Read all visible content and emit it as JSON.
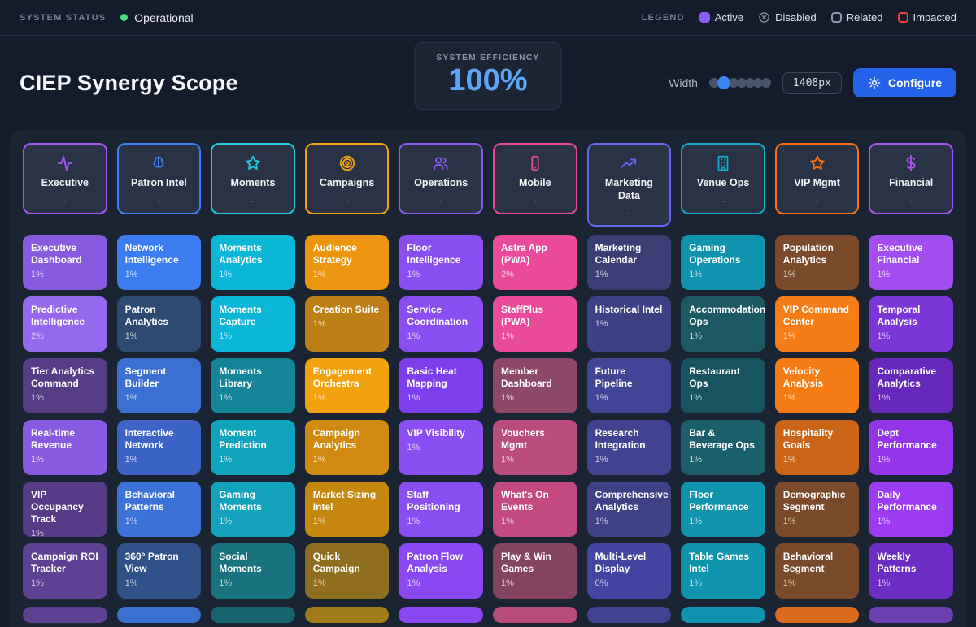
{
  "status_bar": {
    "label": "SYSTEM STATUS",
    "status": "Operational",
    "status_color": "#4ade80",
    "legend_label": "LEGEND",
    "legend": [
      {
        "label": "Active",
        "type": "active",
        "color": "#8b5cf6"
      },
      {
        "label": "Disabled",
        "type": "disabled",
        "color": "#8e98a8"
      },
      {
        "label": "Related",
        "type": "related",
        "color": "#8e98a8"
      },
      {
        "label": "Impacted",
        "type": "impacted",
        "color": "#ef4444"
      }
    ]
  },
  "header": {
    "title": "CIEP Synergy Scope",
    "efficiency_label": "SYSTEM EFFICIENCY",
    "efficiency_value": "100%",
    "efficiency_color": "#5fa5f6",
    "width_label": "Width",
    "width_value": "1408px",
    "slider": {
      "dots": 7,
      "active_index": 1,
      "active_color": "#3b82f6"
    },
    "configure_label": "Configure",
    "configure_color": "#2563eb"
  },
  "categories": [
    {
      "label": "Executive",
      "sub": "-",
      "icon": "activity-icon",
      "color": "#a855f7"
    },
    {
      "label": "Patron Intel",
      "sub": "-",
      "icon": "brain-icon",
      "color": "#3b82f6"
    },
    {
      "label": "Moments",
      "sub": "-",
      "icon": "star-icon",
      "color": "#22ccdd"
    },
    {
      "label": "Campaigns",
      "sub": "-",
      "icon": "target-icon",
      "color": "#f5a315"
    },
    {
      "label": "Operations",
      "sub": "-",
      "icon": "users-icon",
      "color": "#8b5cf6"
    },
    {
      "label": "Mobile",
      "sub": "-",
      "icon": "smartphone-icon",
      "color": "#ec4899"
    },
    {
      "label": "Marketing Data",
      "sub": "-",
      "icon": "trending-up-icon",
      "color": "#6466f0"
    },
    {
      "label": "Venue Ops",
      "sub": "-",
      "icon": "building-icon",
      "color": "#14a9c4"
    },
    {
      "label": "VIP Mgmt",
      "sub": "-",
      "icon": "star-icon",
      "color": "#f97316"
    },
    {
      "label": "Financial",
      "sub": "-",
      "icon": "dollar-icon",
      "color": "#a855f7"
    }
  ],
  "tiles": [
    {
      "label": "Executive Dashboard",
      "value": "1%",
      "color": "#875ae0"
    },
    {
      "label": "Network Intelligence",
      "value": "1%",
      "color": "#3b7cf0"
    },
    {
      "label": "Moments Analytics",
      "value": "1%",
      "color": "#0cb6d6"
    },
    {
      "label": "Audience Strategy",
      "value": "1%",
      "color": "#ec960f"
    },
    {
      "label": "Floor Intelligence",
      "value": "1%",
      "color": "#8a4df2"
    },
    {
      "label": "Astra App (PWA)",
      "value": "2%",
      "color": "#ea4a9a"
    },
    {
      "label": "Marketing Calendar",
      "value": "1%",
      "color": "#3b3d75"
    },
    {
      "label": "Gaming Operations",
      "value": "1%",
      "color": "#1192ae"
    },
    {
      "label": "Population Analytics",
      "value": "1%",
      "color": "#7b4a2b"
    },
    {
      "label": "Executive Financial",
      "value": "1%",
      "color": "#a34df0"
    },
    {
      "label": "Predictive Intelligence",
      "value": "2%",
      "color": "#9569ee"
    },
    {
      "label": "Patron Analytics",
      "value": "1%",
      "color": "#2d4a73"
    },
    {
      "label": "Moments Capture",
      "value": "1%",
      "color": "#0cb6d6"
    },
    {
      "label": "Creation Suite",
      "value": "1%",
      "color": "#bd7f16"
    },
    {
      "label": "Service Coordination",
      "value": "1%",
      "color": "#8a4df2"
    },
    {
      "label": "StaffPlus (PWA)",
      "value": "1%",
      "color": "#ea4a9a"
    },
    {
      "label": "Historical Intel",
      "value": "1%",
      "color": "#3e4084"
    },
    {
      "label": "Accommodation Ops",
      "value": "1%",
      "color": "#1c5964"
    },
    {
      "label": "VIP Command Center",
      "value": "1%",
      "color": "#f67d15"
    },
    {
      "label": "Temporal Analysis",
      "value": "1%",
      "color": "#7d36d8"
    },
    {
      "label": "Tier Analytics Command",
      "value": "1%",
      "color": "#573d85"
    },
    {
      "label": "Segment Builder",
      "value": "1%",
      "color": "#3b70d2"
    },
    {
      "label": "Moments Library",
      "value": "1%",
      "color": "#13849a"
    },
    {
      "label": "Engagement Orchestra",
      "value": "1%",
      "color": "#f2a10f"
    },
    {
      "label": "Basic Heat Mapping",
      "value": "1%",
      "color": "#7e3eee"
    },
    {
      "label": "Member Dashboard",
      "value": "1%",
      "color": "#8d4769"
    },
    {
      "label": "Future Pipeline",
      "value": "1%",
      "color": "#424596"
    },
    {
      "label": "Restaurant Ops",
      "value": "1%",
      "color": "#175360"
    },
    {
      "label": "Velocity Analysis",
      "value": "1%",
      "color": "#f67d15"
    },
    {
      "label": "Comparative Analytics",
      "value": "1%",
      "color": "#6628ba"
    },
    {
      "label": "Real-time Revenue",
      "value": "1%",
      "color": "#875ae0"
    },
    {
      "label": "Interactive Network",
      "value": "1%",
      "color": "#3b64c6"
    },
    {
      "label": "Moment Prediction",
      "value": "1%",
      "color": "#0fa4be"
    },
    {
      "label": "Campaign Analytics",
      "value": "1%",
      "color": "#d08a0f"
    },
    {
      "label": "VIP Visibility",
      "value": "1%",
      "color": "#8a4df2"
    },
    {
      "label": "Vouchers Mgmt",
      "value": "1%",
      "color": "#ba4b7d"
    },
    {
      "label": "Research Integration",
      "value": "1%",
      "color": "#424390"
    },
    {
      "label": "Bar & Beverage Ops",
      "value": "1%",
      "color": "#1b5e6c"
    },
    {
      "label": "Hospitality Goals",
      "value": "1%",
      "color": "#ca6518"
    },
    {
      "label": "Dept Performance",
      "value": "1%",
      "color": "#9336ea"
    },
    {
      "label": "VIP Occupancy Track",
      "value": "1%",
      "color": "#573b86"
    },
    {
      "label": "Behavioral Patterns",
      "value": "1%",
      "color": "#3c71d8"
    },
    {
      "label": "Gaming Moments",
      "value": "1%",
      "color": "#13a2bc"
    },
    {
      "label": "Market Sizing Intel",
      "value": "1%",
      "color": "#c5870e"
    },
    {
      "label": "Staff Positioning",
      "value": "1%",
      "color": "#8a4df2"
    },
    {
      "label": "What's On Events",
      "value": "1%",
      "color": "#c34a80"
    },
    {
      "label": "Comprehensive Analytics",
      "value": "1%",
      "color": "#404288"
    },
    {
      "label": "Floor Performance",
      "value": "1%",
      "color": "#1094ae"
    },
    {
      "label": "Demographic Segment",
      "value": "1%",
      "color": "#7b4a2b"
    },
    {
      "label": "Daily Performance",
      "value": "1%",
      "color": "#9b3cf2"
    },
    {
      "label": "Campaign ROI Tracker",
      "value": "1%",
      "color": "#5e4192"
    },
    {
      "label": "360° Patron View",
      "value": "1%",
      "color": "#2f5288"
    },
    {
      "label": "Social Moments",
      "value": "1%",
      "color": "#187280"
    },
    {
      "label": "Quick Campaign",
      "value": "1%",
      "color": "#906e1f"
    },
    {
      "label": "Patron Flow Analysis",
      "value": "1%",
      "color": "#8a47f2"
    },
    {
      "label": "Play & Win Games",
      "value": "1%",
      "color": "#85445f"
    },
    {
      "label": "Multi-Level Display",
      "value": "0%",
      "color": "#4345a0"
    },
    {
      "label": "Table Games Intel",
      "value": "1%",
      "color": "#0f94ae"
    },
    {
      "label": "Behavioral Segment",
      "value": "1%",
      "color": "#7b4a2b"
    },
    {
      "label": "Weekly Patterns",
      "value": "1%",
      "color": "#6e2cc6"
    }
  ],
  "partial_row_colors": [
    "#5e4192",
    "#3b70d2",
    "#176470",
    "#a17b18",
    "#8a47f2",
    "#ba4b7d",
    "#424390",
    "#1192ae",
    "#da6b1b",
    "#6e3fb2"
  ]
}
